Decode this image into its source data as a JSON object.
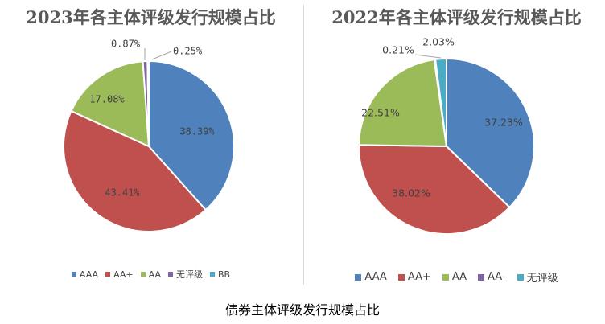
{
  "colors": {
    "AAA": "#4f81bd",
    "AA+": "#c0504d",
    "AA": "#9bbb59",
    "AA-": "#8064a2",
    "无评级": "#4bacc6",
    "BB": "#4bacc6",
    "无评级_2023": "#8064a2"
  },
  "chart_data": [
    {
      "type": "pie",
      "title": "2023年各主体评级发行规模占比",
      "legend_position": "bottom",
      "slices": [
        {
          "label": "AAA",
          "value": 38.39,
          "display": "38.39%",
          "color": "#4f81bd"
        },
        {
          "label": "AA+",
          "value": 43.41,
          "display": "43.41%",
          "color": "#c0504d"
        },
        {
          "label": "AA",
          "value": 17.08,
          "display": "17.08%",
          "color": "#9bbb59"
        },
        {
          "label": "无评级",
          "value": 0.87,
          "display": "0.87%",
          "color": "#8064a2"
        },
        {
          "label": "BB",
          "value": 0.25,
          "display": "0.25%",
          "color": "#4bacc6"
        }
      ]
    },
    {
      "type": "pie",
      "title": "2022年各主体评级发行规模占比",
      "legend_position": "bottom",
      "slices": [
        {
          "label": "AAA",
          "value": 37.23,
          "display": "37.23%",
          "color": "#4f81bd"
        },
        {
          "label": "AA+",
          "value": 38.02,
          "display": "38.02%",
          "color": "#c0504d"
        },
        {
          "label": "AA",
          "value": 22.51,
          "display": "22.51%",
          "color": "#9bbb59"
        },
        {
          "label": "AA-",
          "value": 0.21,
          "display": "0.21%",
          "color": "#8064a2"
        },
        {
          "label": "无评级",
          "value": 2.03,
          "display": "2.03%",
          "color": "#4bacc6"
        }
      ]
    }
  ],
  "caption": "债券主体评级发行规模占比"
}
